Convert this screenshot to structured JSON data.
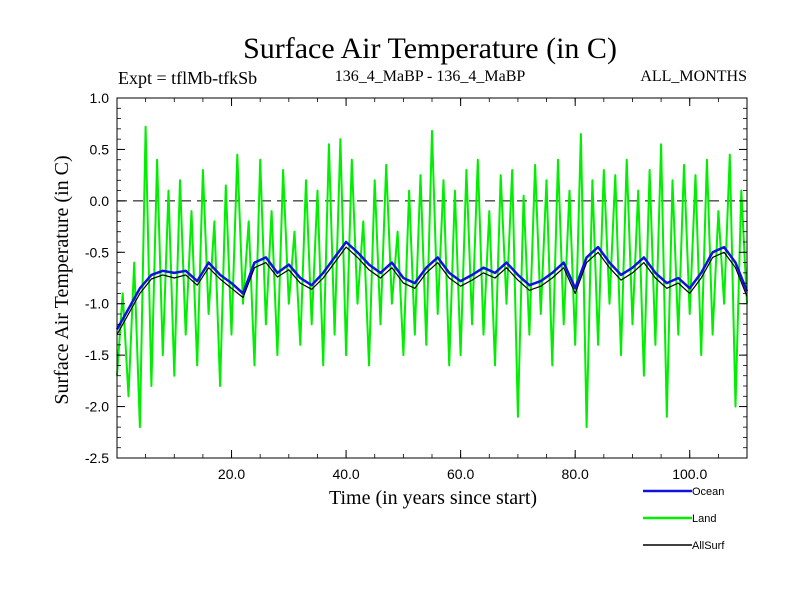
{
  "chart_data": {
    "type": "line",
    "title": "Surface Air Temperature (in C)",
    "subtitle_left": "Expt = tflMb-tfkSb",
    "subtitle_center": "136_4_MaBP - 136_4_MaBP",
    "subtitle_right": "ALL_MONTHS",
    "xlabel": "Time (in years since start)",
    "ylabel": "Surface Air Temperature (in C)",
    "xlim": [
      0,
      110
    ],
    "ylim": [
      -2.5,
      1.0
    ],
    "x_ticks": [
      20,
      40,
      60,
      80,
      100
    ],
    "x_tick_labels": [
      "20.0",
      "40.0",
      "60.0",
      "80.0",
      "100.0"
    ],
    "y_ticks": [
      1.0,
      0.5,
      0.0,
      -0.5,
      -1.0,
      -1.5,
      -2.0,
      -2.5
    ],
    "y_tick_labels": [
      "1.0",
      "0.5",
      "0.0",
      "-0.5",
      "-1.0",
      "-1.5",
      "-2.0",
      "-2.5"
    ],
    "reference_line": 0.0,
    "legend": {
      "placement": "bottom-right, outside plot",
      "entries": [
        "Ocean",
        "Land",
        "AllSurf"
      ]
    },
    "series": [
      {
        "name": "Ocean",
        "color": "#1010e0",
        "x": [
          0,
          2,
          4,
          6,
          8,
          10,
          12,
          14,
          16,
          18,
          20,
          22,
          24,
          26,
          28,
          30,
          32,
          34,
          36,
          38,
          40,
          42,
          44,
          46,
          48,
          50,
          52,
          54,
          56,
          58,
          60,
          62,
          64,
          66,
          68,
          70,
          72,
          74,
          76,
          78,
          80,
          82,
          84,
          86,
          88,
          90,
          92,
          94,
          96,
          98,
          100,
          102,
          104,
          106,
          108,
          110
        ],
        "values": [
          -1.25,
          -1.05,
          -0.85,
          -0.72,
          -0.68,
          -0.7,
          -0.68,
          -0.78,
          -0.6,
          -0.72,
          -0.8,
          -0.9,
          -0.6,
          -0.55,
          -0.7,
          -0.62,
          -0.75,
          -0.82,
          -0.7,
          -0.55,
          -0.4,
          -0.5,
          -0.62,
          -0.7,
          -0.6,
          -0.75,
          -0.8,
          -0.65,
          -0.55,
          -0.7,
          -0.78,
          -0.72,
          -0.65,
          -0.7,
          -0.6,
          -0.72,
          -0.82,
          -0.78,
          -0.7,
          -0.6,
          -0.85,
          -0.55,
          -0.45,
          -0.6,
          -0.72,
          -0.65,
          -0.55,
          -0.7,
          -0.8,
          -0.75,
          -0.85,
          -0.7,
          -0.5,
          -0.45,
          -0.6,
          -0.88
        ]
      },
      {
        "name": "Land",
        "color": "#00ee00",
        "x": [
          0,
          1,
          2,
          3,
          4,
          5,
          6,
          7,
          8,
          9,
          10,
          11,
          12,
          13,
          14,
          15,
          16,
          17,
          18,
          19,
          20,
          21,
          22,
          23,
          24,
          25,
          26,
          27,
          28,
          29,
          30,
          31,
          32,
          33,
          34,
          35,
          36,
          37,
          38,
          39,
          40,
          41,
          42,
          43,
          44,
          45,
          46,
          47,
          48,
          49,
          50,
          51,
          52,
          53,
          54,
          55,
          56,
          57,
          58,
          59,
          60,
          61,
          62,
          63,
          64,
          65,
          66,
          67,
          68,
          69,
          70,
          71,
          72,
          73,
          74,
          75,
          76,
          77,
          78,
          79,
          80,
          81,
          82,
          83,
          84,
          85,
          86,
          87,
          88,
          89,
          90,
          91,
          92,
          93,
          94,
          95,
          96,
          97,
          98,
          99,
          100,
          101,
          102,
          103,
          104,
          105,
          106,
          107,
          108,
          109,
          110
        ],
        "values": [
          -1.7,
          -0.9,
          -1.9,
          -0.6,
          -2.2,
          0.72,
          -1.8,
          0.4,
          -1.5,
          0.1,
          -1.7,
          0.2,
          -1.3,
          -0.1,
          -1.6,
          0.3,
          -1.1,
          -0.2,
          -1.8,
          0.15,
          -1.3,
          0.45,
          -1.0,
          -0.2,
          -1.6,
          0.4,
          -1.2,
          -0.1,
          -1.5,
          0.3,
          -1.0,
          -0.3,
          -1.4,
          0.2,
          -1.2,
          0.1,
          -1.6,
          0.55,
          -1.3,
          0.6,
          -1.5,
          0.4,
          -1.0,
          -0.2,
          -1.6,
          0.2,
          -1.2,
          0.35,
          -1.0,
          -0.3,
          -1.5,
          0.1,
          -1.3,
          0.25,
          -1.4,
          0.68,
          -1.1,
          0.2,
          -1.6,
          0.1,
          -1.5,
          0.3,
          -1.2,
          0.4,
          -1.3,
          -0.1,
          -1.6,
          0.25,
          -1.0,
          0.3,
          -2.1,
          0.05,
          -1.3,
          0.35,
          -1.1,
          0.2,
          -1.6,
          0.4,
          -1.2,
          0.1,
          -1.4,
          0.65,
          -2.2,
          0.2,
          -1.4,
          0.3,
          -1.0,
          0.25,
          -1.5,
          0.4,
          -1.2,
          0.1,
          -1.7,
          0.3,
          -1.4,
          0.55,
          -2.1,
          0.2,
          -1.3,
          0.35,
          -1.1,
          0.25,
          -1.5,
          0.4,
          -1.3,
          -0.1,
          -1.0,
          0.45,
          -2.0,
          0.1,
          -1.0
        ]
      },
      {
        "name": "AllSurf",
        "color": "#000000",
        "x": [
          0,
          2,
          4,
          6,
          8,
          10,
          12,
          14,
          16,
          18,
          20,
          22,
          24,
          26,
          28,
          30,
          32,
          34,
          36,
          38,
          40,
          42,
          44,
          46,
          48,
          50,
          52,
          54,
          56,
          58,
          60,
          62,
          64,
          66,
          68,
          70,
          72,
          74,
          76,
          78,
          80,
          82,
          84,
          86,
          88,
          90,
          92,
          94,
          96,
          98,
          100,
          102,
          104,
          106,
          108,
          110
        ],
        "values": [
          -1.3,
          -1.1,
          -0.9,
          -0.76,
          -0.72,
          -0.75,
          -0.72,
          -0.82,
          -0.65,
          -0.76,
          -0.85,
          -0.94,
          -0.65,
          -0.6,
          -0.74,
          -0.67,
          -0.8,
          -0.86,
          -0.75,
          -0.6,
          -0.45,
          -0.55,
          -0.67,
          -0.75,
          -0.65,
          -0.8,
          -0.85,
          -0.7,
          -0.6,
          -0.75,
          -0.83,
          -0.77,
          -0.7,
          -0.75,
          -0.65,
          -0.77,
          -0.87,
          -0.83,
          -0.75,
          -0.65,
          -0.9,
          -0.6,
          -0.5,
          -0.65,
          -0.77,
          -0.7,
          -0.6,
          -0.75,
          -0.85,
          -0.8,
          -0.9,
          -0.75,
          -0.55,
          -0.5,
          -0.65,
          -0.93
        ]
      }
    ]
  }
}
